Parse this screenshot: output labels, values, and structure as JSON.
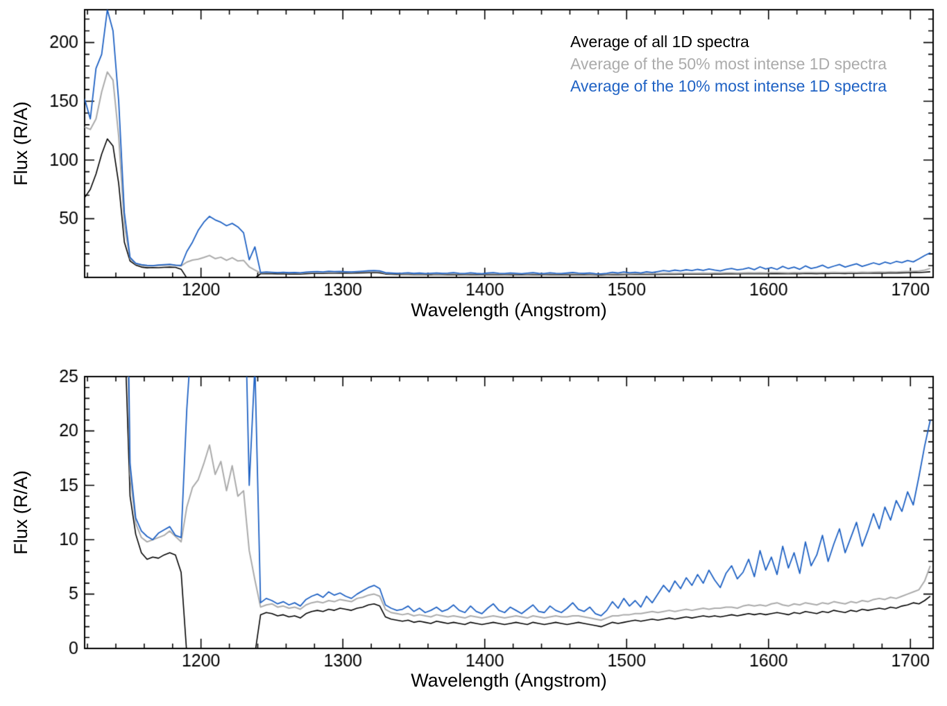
{
  "legend": {
    "items": [
      {
        "label": "Average of all 1D spectra",
        "color": "#000000"
      },
      {
        "label": "Average of the 50% most intense 1D spectra",
        "color": "#ababab"
      },
      {
        "label": "Average of the 10% most intense 1D spectra",
        "color": "#1f62c4"
      }
    ]
  },
  "chart_data": {
    "type": "line",
    "xlabel": "Wavelength (Angstrom)",
    "ylabel": "Flux (R/A)",
    "xlim": [
      1118,
      1716
    ],
    "xticks": [
      1200,
      1300,
      1400,
      1500,
      1600,
      1700
    ],
    "xtick_minor": 20,
    "panels": [
      {
        "name": "full-range",
        "ylim": [
          0,
          228
        ],
        "yticks": [
          50,
          100,
          150,
          200
        ],
        "ytick_minor": 10
      },
      {
        "name": "zoomed",
        "ylim": [
          0,
          25
        ],
        "yticks": [
          0,
          5,
          10,
          15,
          20,
          25
        ],
        "ytick_minor": 1
      }
    ],
    "x": [
      1118,
      1122,
      1126,
      1130,
      1134,
      1138,
      1142,
      1146,
      1150,
      1154,
      1158,
      1162,
      1166,
      1170,
      1174,
      1178,
      1182,
      1186,
      1190,
      1194,
      1198,
      1202,
      1206,
      1210,
      1214,
      1218,
      1222,
      1226,
      1230,
      1234,
      1238,
      1242,
      1246,
      1250,
      1254,
      1258,
      1262,
      1266,
      1270,
      1274,
      1278,
      1282,
      1286,
      1290,
      1294,
      1298,
      1302,
      1306,
      1310,
      1314,
      1318,
      1322,
      1326,
      1330,
      1334,
      1338,
      1342,
      1346,
      1350,
      1354,
      1358,
      1362,
      1366,
      1370,
      1374,
      1378,
      1382,
      1386,
      1390,
      1394,
      1398,
      1402,
      1406,
      1410,
      1414,
      1418,
      1422,
      1426,
      1430,
      1434,
      1438,
      1442,
      1446,
      1450,
      1454,
      1458,
      1462,
      1466,
      1470,
      1474,
      1478,
      1482,
      1486,
      1490,
      1494,
      1498,
      1502,
      1506,
      1510,
      1514,
      1518,
      1522,
      1526,
      1530,
      1534,
      1538,
      1542,
      1546,
      1550,
      1554,
      1558,
      1562,
      1566,
      1570,
      1574,
      1578,
      1582,
      1586,
      1590,
      1594,
      1598,
      1602,
      1606,
      1610,
      1614,
      1618,
      1622,
      1626,
      1630,
      1634,
      1638,
      1642,
      1646,
      1650,
      1654,
      1658,
      1662,
      1666,
      1670,
      1674,
      1678,
      1682,
      1686,
      1690,
      1694,
      1698,
      1702,
      1706,
      1710,
      1714
    ],
    "series": [
      {
        "name": "Average of all 1D spectra",
        "color": "#000000",
        "width": 1.6,
        "values": [
          68,
          75,
          88,
          105,
          118,
          112,
          80,
          30,
          14,
          10.5,
          8.8,
          8.2,
          8.4,
          8.3,
          8.6,
          8.8,
          8.6,
          7.0,
          -0.5,
          -0.5,
          -0.5,
          -0.5,
          -0.5,
          -0.5,
          -0.5,
          -0.5,
          -0.5,
          -0.5,
          -0.5,
          -0.5,
          -0.5,
          3.1,
          3.3,
          3.2,
          3.0,
          3.1,
          2.9,
          3.0,
          2.8,
          3.2,
          3.4,
          3.5,
          3.4,
          3.6,
          3.5,
          3.7,
          3.6,
          3.5,
          3.7,
          3.8,
          4.0,
          4.1,
          3.9,
          2.9,
          2.7,
          2.6,
          2.5,
          2.6,
          2.4,
          2.5,
          2.4,
          2.3,
          2.5,
          2.4,
          2.3,
          2.4,
          2.3,
          2.2,
          2.4,
          2.3,
          2.2,
          2.3,
          2.4,
          2.3,
          2.2,
          2.3,
          2.4,
          2.3,
          2.2,
          2.4,
          2.3,
          2.2,
          2.3,
          2.4,
          2.3,
          2.2,
          2.3,
          2.4,
          2.3,
          2.2,
          2.1,
          2.0,
          2.2,
          2.4,
          2.3,
          2.4,
          2.5,
          2.6,
          2.5,
          2.6,
          2.7,
          2.6,
          2.7,
          2.8,
          2.7,
          2.8,
          2.9,
          2.8,
          2.9,
          3.0,
          2.9,
          3.0,
          2.9,
          3.0,
          3.1,
          3.0,
          3.1,
          3.2,
          3.1,
          3.2,
          3.1,
          3.2,
          3.3,
          3.2,
          3.1,
          3.3,
          3.2,
          3.4,
          3.3,
          3.2,
          3.4,
          3.3,
          3.5,
          3.4,
          3.3,
          3.5,
          3.4,
          3.6,
          3.5,
          3.6,
          3.7,
          3.6,
          3.8,
          3.7,
          3.9,
          4.0,
          4.2,
          4.1,
          4.4,
          4.8
        ]
      },
      {
        "name": "Average of the 50% most intense 1D spectra",
        "color": "#ababab",
        "width": 2.0,
        "values": [
          128,
          126,
          135,
          158,
          175,
          168,
          120,
          45,
          16,
          11.5,
          10.2,
          9.8,
          10.0,
          10.2,
          10.4,
          10.8,
          10.3,
          9.8,
          13.0,
          14.8,
          15.5,
          17.0,
          18.7,
          16.0,
          17.2,
          14.5,
          16.8,
          14.0,
          14.5,
          9.0,
          6.3,
          3.8,
          4.0,
          4.1,
          3.8,
          3.9,
          3.7,
          3.8,
          3.6,
          4.0,
          4.2,
          4.3,
          4.2,
          4.4,
          4.3,
          4.5,
          4.4,
          4.3,
          4.6,
          4.7,
          4.9,
          5.0,
          4.8,
          3.6,
          3.3,
          3.2,
          3.1,
          3.2,
          3.0,
          3.1,
          3.0,
          2.9,
          3.1,
          3.0,
          2.9,
          3.0,
          2.9,
          2.8,
          3.0,
          2.9,
          2.8,
          2.9,
          3.0,
          2.9,
          2.8,
          2.9,
          3.0,
          2.9,
          2.8,
          3.0,
          2.9,
          2.8,
          2.9,
          3.0,
          2.9,
          2.9,
          3.0,
          3.0,
          2.9,
          2.8,
          2.7,
          2.6,
          2.8,
          3.0,
          3.0,
          3.1,
          3.1,
          3.2,
          3.2,
          3.3,
          3.4,
          3.3,
          3.4,
          3.5,
          3.4,
          3.5,
          3.6,
          3.5,
          3.6,
          3.7,
          3.6,
          3.7,
          3.7,
          3.8,
          3.8,
          3.7,
          3.9,
          4.0,
          3.9,
          4.0,
          3.9,
          4.1,
          4.2,
          4.0,
          3.9,
          4.1,
          4.0,
          4.2,
          4.1,
          4.0,
          4.2,
          4.1,
          4.3,
          4.2,
          4.1,
          4.3,
          4.2,
          4.4,
          4.3,
          4.5,
          4.6,
          4.5,
          4.7,
          4.6,
          4.8,
          5.0,
          5.2,
          5.4,
          6.2,
          7.6
        ]
      },
      {
        "name": "Average of the 10% most intense 1D spectra",
        "color": "#1f62c4",
        "width": 1.8,
        "values": [
          152,
          135,
          178,
          190,
          228,
          210,
          150,
          55,
          17,
          12.0,
          10.8,
          10.3,
          10.0,
          10.6,
          10.9,
          11.2,
          10.4,
          10.2,
          22,
          30,
          40,
          47,
          52,
          49,
          47,
          44,
          46,
          43,
          38,
          15,
          26,
          4.2,
          4.6,
          4.4,
          4.1,
          4.3,
          4.0,
          4.2,
          3.9,
          4.5,
          4.8,
          5.0,
          4.7,
          5.2,
          4.9,
          5.1,
          4.8,
          4.6,
          5.0,
          5.3,
          5.6,
          5.8,
          5.5,
          4.0,
          3.7,
          3.5,
          3.6,
          3.9,
          3.4,
          3.7,
          3.3,
          3.5,
          3.8,
          3.4,
          3.6,
          4.0,
          3.5,
          3.3,
          3.9,
          3.4,
          3.2,
          3.7,
          4.1,
          3.5,
          3.3,
          3.8,
          3.5,
          3.2,
          3.6,
          4.0,
          3.4,
          3.3,
          3.9,
          3.5,
          3.3,
          3.7,
          4.2,
          3.6,
          3.4,
          3.8,
          3.2,
          3.0,
          3.5,
          4.3,
          3.7,
          4.6,
          3.9,
          4.4,
          3.8,
          4.8,
          4.2,
          5.0,
          5.8,
          5.2,
          6.2,
          5.5,
          6.5,
          5.8,
          6.8,
          6.0,
          7.2,
          6.3,
          5.6,
          6.9,
          7.6,
          6.4,
          7.0,
          8.2,
          6.6,
          9.0,
          7.2,
          8.4,
          6.8,
          9.4,
          7.4,
          8.8,
          6.9,
          9.8,
          7.6,
          8.6,
          10.4,
          8.0,
          9.6,
          11.0,
          8.8,
          10.2,
          11.6,
          9.4,
          10.8,
          12.4,
          11.0,
          13.0,
          11.8,
          13.6,
          12.6,
          14.4,
          13.2,
          15.8,
          18.6,
          21.0
        ]
      }
    ]
  }
}
